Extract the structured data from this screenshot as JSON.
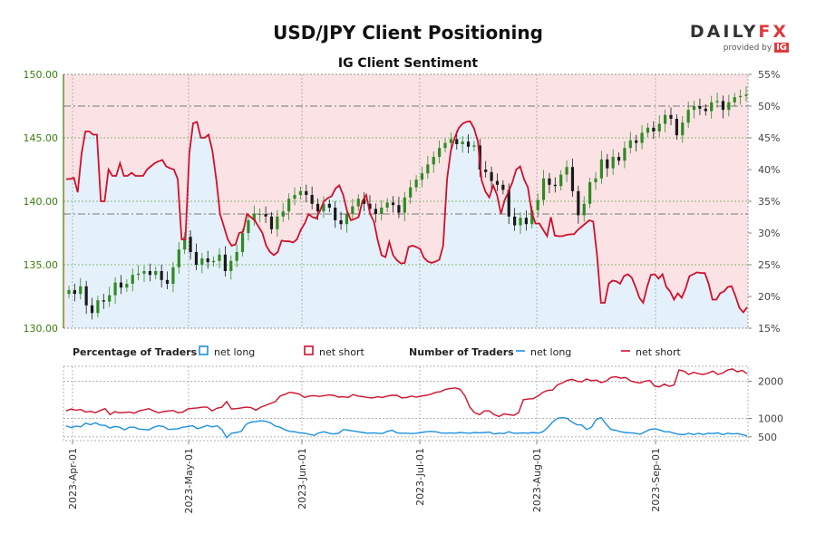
{
  "header": {
    "title": "USD/JPY Client Positioning",
    "subtitle": "IG Client Sentiment",
    "logo": {
      "brand_left": "DAILY",
      "brand_right": "FX",
      "provided_by": "provided by",
      "ig": "IG"
    }
  },
  "legend": {
    "pct_heading": "Percentage of Traders",
    "pct_long": "net long",
    "pct_short": "net short",
    "num_heading": "Number of Traders",
    "num_long": "net long",
    "num_short": "net short"
  },
  "colors": {
    "long": "#1e90e0",
    "short": "#d0102c",
    "long_fill": "#e5f1fa",
    "short_fill": "#fbe3e5",
    "price_axis": "#3a7d0a",
    "candle_up": "#2e8b22",
    "candle_down": "#1a1a1a"
  },
  "chart_data": [
    {
      "type": "line",
      "name": "price-and-percentage",
      "y_left": {
        "ticks": [
          "130.00",
          "135.00",
          "140.00",
          "145.00",
          "150.00"
        ],
        "range": [
          130,
          150
        ]
      },
      "y_right": {
        "ticks": [
          "15%",
          "20%",
          "25%",
          "30%",
          "35%",
          "40%",
          "45%",
          "50%",
          "55%"
        ],
        "range": [
          15,
          55
        ]
      },
      "x_ticks": [
        "2023-Apr-01",
        "2023-May-01",
        "2023-Jun-01",
        "2023-Jul-01",
        "2023-Aug-01",
        "2023-Sep-01"
      ],
      "net_long_pct": [
        38.5,
        38.5,
        38.7,
        36.4,
        42.5,
        46,
        46,
        45.5,
        45.5,
        35,
        35,
        40,
        39,
        39,
        41,
        39,
        39,
        39.5,
        39,
        39,
        39,
        40,
        40.5,
        41,
        41.3,
        41.5,
        40.5,
        40.2,
        40,
        38.5,
        29,
        29,
        42.5,
        47.3,
        47.5,
        45,
        45,
        45.5,
        43,
        38.5,
        33,
        31,
        29,
        28,
        28.2,
        30,
        30.2,
        33,
        32.5,
        32,
        31,
        30,
        28,
        27,
        26.5,
        27,
        28.8,
        28.7,
        28.7,
        28.5,
        29,
        30.5,
        31.5,
        33,
        32.5,
        32.3,
        33.5,
        35,
        35.5,
        35.8,
        37,
        37.5,
        36,
        33.5,
        32,
        32.2,
        32.5,
        35,
        36,
        33,
        31.8,
        28.8,
        26.5,
        26.2,
        28.6,
        26.5,
        25.7,
        25.2,
        25.3,
        27.8,
        28,
        27.8,
        27.5,
        26.1,
        25.5,
        25.3,
        25.5,
        25.8,
        28,
        38.5,
        43,
        45,
        46.5,
        47.2,
        47.5,
        47.6,
        46.5,
        44.5,
        38.3,
        36.5,
        35.6,
        37.5,
        36,
        33,
        35.2,
        36.5,
        38,
        40,
        40.5,
        38.5,
        37.2,
        33.3,
        31.5,
        31.5,
        30.5,
        29.5,
        32.5,
        29.6,
        29.5,
        29.5,
        29.7,
        29.8,
        29.8,
        30.5,
        31,
        31.5,
        32,
        31.8,
        26.5,
        19,
        19,
        22,
        22.5,
        22.4,
        22,
        23.2,
        23.5,
        23,
        21.5,
        19.8,
        19,
        21.5,
        23.4,
        23.5,
        22.8,
        23.5,
        21.5,
        20.8,
        19.5,
        20.5,
        19.8,
        21.2,
        23.2,
        23.5,
        23.8,
        23.7,
        23.7,
        22,
        19.5,
        19.5,
        20.5,
        20.8,
        21.5,
        21.6,
        20,
        18.2,
        17.5,
        18.3
      ],
      "price_close": [
        133,
        132.7,
        133.3,
        131.8,
        131.2,
        132.2,
        132.1,
        132.6,
        133.6,
        133.2,
        133.5,
        134.2,
        134.3,
        134.5,
        134.2,
        134.5,
        133.8,
        133.5,
        134.8,
        136.2,
        137.2,
        136,
        135,
        135.5,
        135.2,
        135.3,
        135.8,
        134.5,
        135.3,
        136,
        137.5,
        138.5,
        139,
        139,
        138.8,
        137.8,
        138.8,
        139.2,
        140.2,
        140.5,
        140.8,
        140.5,
        139.8,
        139.2,
        139.8,
        139.5,
        138.5,
        138.2,
        139,
        139.6,
        140.2,
        139.8,
        139.4,
        139,
        139.5,
        139.9,
        139.7,
        139.1,
        140.3,
        141.1,
        141.7,
        142.2,
        142.9,
        143.5,
        144.2,
        144.6,
        144.9,
        144.5,
        144.7,
        144.3,
        144.4,
        142.5,
        142.3,
        141.6,
        141.3,
        140.9,
        138.8,
        138.1,
        138.7,
        138.2,
        139.3,
        140.1,
        141.8,
        141.3,
        141.2,
        142.1,
        142.7,
        140.8,
        138.9,
        139.8,
        141.5,
        141.8,
        143.3,
        142.6,
        143.5,
        143.2,
        144.2,
        144.8,
        144.6,
        145.4,
        145.8,
        145.5,
        146.1,
        146.8,
        146.5,
        145.2,
        146.2,
        147.2,
        147.5,
        147.3,
        147.1,
        147.8,
        147.9,
        147.2,
        147.8,
        148.2,
        148.3,
        148.4
      ],
      "horizontal_refs_left": [
        147.5,
        139
      ]
    },
    {
      "type": "line",
      "name": "number-of-traders",
      "y_right": {
        "ticks": [
          "500",
          "1000",
          "2000"
        ]
      },
      "net_long": [
        800,
        750,
        790,
        770,
        870,
        830,
        880,
        820,
        810,
        740,
        780,
        760,
        690,
        760,
        760,
        710,
        700,
        690,
        760,
        800,
        780,
        700,
        710,
        720,
        760,
        780,
        800,
        720,
        760,
        810,
        770,
        800,
        700,
        480,
        600,
        620,
        650,
        840,
        900,
        910,
        940,
        920,
        880,
        790,
        760,
        690,
        650,
        640,
        610,
        600,
        570,
        540,
        610,
        640,
        600,
        580,
        600,
        700,
        680,
        660,
        640,
        620,
        600,
        610,
        600,
        590,
        650,
        680,
        610,
        600,
        600,
        590,
        600,
        620,
        640,
        650,
        640,
        610,
        600,
        610,
        600,
        620,
        610,
        600,
        620,
        610,
        620,
        630,
        580,
        600,
        590,
        640,
        600,
        600,
        610,
        600,
        620,
        600,
        640,
        750,
        900,
        1000,
        1020,
        1000,
        900,
        830,
        820,
        700,
        760,
        970,
        1020,
        850,
        700,
        680,
        640,
        620,
        610,
        600,
        570,
        640,
        700,
        720,
        690,
        640,
        640,
        600,
        570,
        560,
        600,
        560,
        600,
        560,
        600,
        590,
        610,
        560,
        600,
        580,
        590,
        560,
        530
      ],
      "net_short": [
        1200,
        1250,
        1220,
        1240,
        1170,
        1190,
        1150,
        1210,
        1260,
        1100,
        1180,
        1150,
        1160,
        1170,
        1140,
        1200,
        1230,
        1260,
        1200,
        1150,
        1180,
        1200,
        1210,
        1150,
        1170,
        1250,
        1270,
        1280,
        1300,
        1300,
        1200,
        1270,
        1300,
        1450,
        1250,
        1260,
        1280,
        1300,
        1290,
        1220,
        1300,
        1350,
        1400,
        1450,
        1600,
        1650,
        1700,
        1680,
        1650,
        1560,
        1600,
        1610,
        1590,
        1610,
        1630,
        1620,
        1570,
        1580,
        1560,
        1640,
        1600,
        1580,
        1560,
        1550,
        1580,
        1560,
        1600,
        1620,
        1620,
        1550,
        1560,
        1600,
        1570,
        1600,
        1620,
        1650,
        1700,
        1720,
        1780,
        1800,
        1820,
        1780,
        1600,
        1300,
        1150,
        1100,
        1200,
        1200,
        1100,
        1050,
        1120,
        1100,
        1080,
        1150,
        1500,
        1520,
        1530,
        1600,
        1700,
        1750,
        1760,
        1900,
        1950,
        2020,
        2050,
        2000,
        1980,
        2060,
        2010,
        2030,
        1960,
        2000,
        2100,
        2120,
        2080,
        2100,
        2010,
        1970,
        1950,
        2000,
        2020,
        1860,
        1850,
        1920,
        1860,
        1900,
        2300,
        2270,
        2180,
        2240,
        2200,
        2180,
        2220,
        2270,
        2180,
        2220,
        2300,
        2330,
        2250,
        2290,
        2200
      ]
    }
  ]
}
